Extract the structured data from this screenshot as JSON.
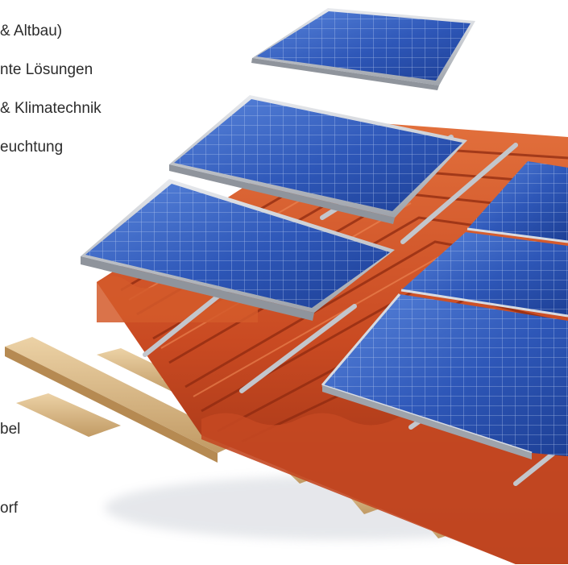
{
  "text_lines": [
    "& Altbau)",
    "nte Lösungen",
    "& Klimatechnik",
    "euchtung",
    "bel",
    "orf"
  ],
  "colors": {
    "tile": "#c94a22",
    "tile_dark": "#8f2a10",
    "tile_light": "#e2703c",
    "panel_cell": "#2e57b8",
    "panel_cell_light": "#5a86dc",
    "panel_frame": "#c9ccd2",
    "rail": "#c3c6cc",
    "wood": "#d9b98a",
    "text": "#2c2c2c"
  }
}
